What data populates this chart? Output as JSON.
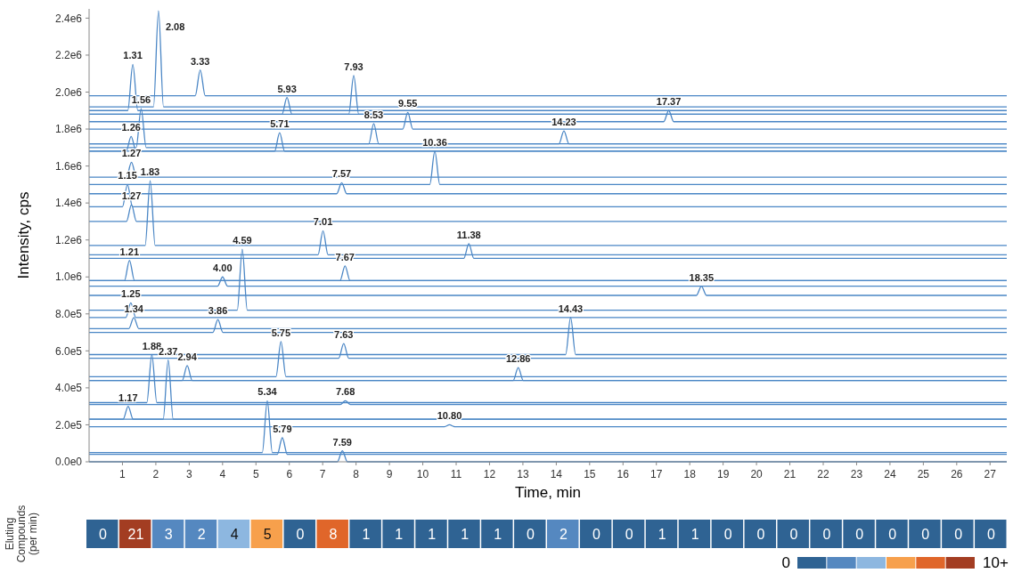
{
  "chart_data": [
    {
      "type": "line",
      "xlabel": "Time, min",
      "ylabel": "Intensity, cps",
      "xlim": [
        0,
        27.5
      ],
      "ylim": [
        0,
        2450000
      ],
      "xticks": [
        1,
        2,
        3,
        4,
        5,
        6,
        7,
        8,
        9,
        10,
        11,
        12,
        13,
        14,
        15,
        16,
        17,
        18,
        19,
        20,
        21,
        22,
        23,
        24,
        25,
        26,
        27
      ],
      "yticks": [
        {
          "value": 0,
          "label": "0.0e0"
        },
        {
          "value": 200000,
          "label": "2.0e5"
        },
        {
          "value": 400000,
          "label": "4.0e5"
        },
        {
          "value": 600000,
          "label": "6.0e5"
        },
        {
          "value": 800000,
          "label": "8.0e5"
        },
        {
          "value": 1000000,
          "label": "1.0e6"
        },
        {
          "value": 1200000,
          "label": "1.2e6"
        },
        {
          "value": 1400000,
          "label": "1.4e6"
        },
        {
          "value": 1600000,
          "label": "1.6e6"
        },
        {
          "value": 1800000,
          "label": "1.8e6"
        },
        {
          "value": 2000000,
          "label": "2.0e6"
        },
        {
          "value": 2200000,
          "label": "2.2e6"
        },
        {
          "value": 2400000,
          "label": "2.4e6"
        }
      ],
      "series": [
        {
          "color": "#4a86c5",
          "x": [
            0,
            1.93,
            2.08,
            2.23,
            27.5
          ],
          "values": [
            1920000,
            1920000,
            2440000,
            1920000,
            1920000
          ]
        },
        {
          "color": "#4a86c5",
          "x": [
            0,
            1.16,
            1.31,
            1.46,
            27.5
          ],
          "values": [
            1900000,
            1900000,
            2150000,
            1900000,
            1900000
          ]
        },
        {
          "color": "#4a86c5",
          "x": [
            0,
            3.18,
            3.33,
            3.48,
            27.5
          ],
          "values": [
            1980000,
            1980000,
            2120000,
            1980000,
            1980000
          ]
        },
        {
          "color": "#4a86c5",
          "x": [
            0,
            7.78,
            7.93,
            8.08,
            27.5
          ],
          "values": [
            1880000,
            1880000,
            2090000,
            1880000,
            1880000
          ]
        },
        {
          "color": "#4a86c5",
          "x": [
            0,
            5.78,
            5.93,
            6.08,
            27.5
          ],
          "values": [
            1880000,
            1880000,
            1970000,
            1880000,
            1880000
          ]
        },
        {
          "color": "#4a86c5",
          "x": [
            0,
            1.41,
            1.56,
            1.71,
            27.5
          ],
          "values": [
            1700000,
            1700000,
            1910000,
            1700000,
            1700000
          ]
        },
        {
          "color": "#4a86c5",
          "x": [
            0,
            9.4,
            9.55,
            9.7,
            27.5
          ],
          "values": [
            1800000,
            1800000,
            1890000,
            1800000,
            1800000
          ]
        },
        {
          "color": "#4a86c5",
          "x": [
            0,
            17.22,
            17.37,
            17.52,
            27.5
          ],
          "values": [
            1840000,
            1840000,
            1900000,
            1840000,
            1840000
          ]
        },
        {
          "color": "#4a86c5",
          "x": [
            0,
            8.38,
            8.53,
            8.68,
            27.5
          ],
          "values": [
            1720000,
            1720000,
            1830000,
            1720000,
            1720000
          ]
        },
        {
          "color": "#4a86c5",
          "x": [
            0,
            14.08,
            14.23,
            14.38,
            27.5
          ],
          "values": [
            1720000,
            1720000,
            1790000,
            1720000,
            1720000
          ]
        },
        {
          "color": "#4a86c5",
          "x": [
            0,
            5.56,
            5.71,
            5.86,
            27.5
          ],
          "values": [
            1680000,
            1680000,
            1780000,
            1680000,
            1680000
          ]
        },
        {
          "color": "#4a86c5",
          "x": [
            0,
            1.11,
            1.26,
            1.41,
            27.5
          ],
          "values": [
            1680000,
            1680000,
            1760000,
            1680000,
            1680000
          ]
        },
        {
          "color": "#4a86c5",
          "x": [
            0,
            10.21,
            10.36,
            10.51,
            27.5
          ],
          "values": [
            1500000,
            1500000,
            1680000,
            1500000,
            1500000
          ]
        },
        {
          "color": "#4a86c5",
          "x": [
            0,
            1.12,
            1.27,
            1.42,
            27.5
          ],
          "values": [
            1540000,
            1540000,
            1620000,
            1540000,
            1540000
          ]
        },
        {
          "color": "#4a86c5",
          "x": [
            0,
            1.68,
            1.83,
            1.98,
            27.5
          ],
          "values": [
            1170000,
            1170000,
            1520000,
            1170000,
            1170000
          ]
        },
        {
          "color": "#4a86c5",
          "x": [
            0,
            7.42,
            7.57,
            7.72,
            27.5
          ],
          "values": [
            1450000,
            1450000,
            1510000,
            1450000,
            1450000
          ]
        },
        {
          "color": "#4a86c5",
          "x": [
            0,
            1,
            1.15,
            1.3,
            27.5
          ],
          "values": [
            1380000,
            1380000,
            1500000,
            1380000,
            1380000
          ]
        },
        {
          "color": "#4a86c5",
          "x": [
            0,
            1.12,
            1.27,
            1.42,
            27.5
          ],
          "values": [
            1300000,
            1300000,
            1390000,
            1300000,
            1300000
          ]
        },
        {
          "color": "#4a86c5",
          "x": [
            0,
            6.86,
            7.01,
            7.16,
            27.5
          ],
          "values": [
            1120000,
            1120000,
            1250000,
            1120000,
            1120000
          ]
        },
        {
          "color": "#4a86c5",
          "x": [
            0,
            4.44,
            4.59,
            4.74,
            27.5
          ],
          "values": [
            820000,
            820000,
            1150000,
            820000,
            820000
          ]
        },
        {
          "color": "#4a86c5",
          "x": [
            0,
            11.23,
            11.38,
            11.53,
            27.5
          ],
          "values": [
            1100000,
            1100000,
            1180000,
            1100000,
            1100000
          ]
        },
        {
          "color": "#4a86c5",
          "x": [
            0,
            1.06,
            1.21,
            1.36,
            27.5
          ],
          "values": [
            980000,
            980000,
            1090000,
            980000,
            980000
          ]
        },
        {
          "color": "#4a86c5",
          "x": [
            0,
            3.85,
            4,
            4.15,
            27.5
          ],
          "values": [
            950000,
            950000,
            1000000,
            950000,
            950000
          ]
        },
        {
          "color": "#4a86c5",
          "x": [
            0,
            7.52,
            7.67,
            7.82,
            27.5
          ],
          "values": [
            980000,
            980000,
            1060000,
            980000,
            980000
          ]
        },
        {
          "color": "#4a86c5",
          "x": [
            0,
            18.2,
            18.35,
            18.5,
            27.5
          ],
          "values": [
            900000,
            900000,
            950000,
            900000,
            900000
          ]
        },
        {
          "color": "#4a86c5",
          "x": [
            0,
            1.1,
            1.25,
            1.4,
            27.5
          ],
          "values": [
            780000,
            780000,
            860000,
            780000,
            780000
          ]
        },
        {
          "color": "#4a86c5",
          "x": [
            0,
            1.19,
            1.34,
            1.49,
            27.5
          ],
          "values": [
            720000,
            720000,
            780000,
            720000,
            720000
          ]
        },
        {
          "color": "#4a86c5",
          "x": [
            0,
            14.28,
            14.43,
            14.58,
            27.5
          ],
          "values": [
            580000,
            580000,
            780000,
            580000,
            580000
          ]
        },
        {
          "color": "#4a86c5",
          "x": [
            0,
            3.71,
            3.86,
            4.01,
            27.5
          ],
          "values": [
            700000,
            700000,
            770000,
            700000,
            700000
          ]
        },
        {
          "color": "#4a86c5",
          "x": [
            0,
            5.6,
            5.75,
            5.9,
            27.5
          ],
          "values": [
            460000,
            460000,
            650000,
            460000,
            460000
          ]
        },
        {
          "color": "#4a86c5",
          "x": [
            0,
            7.48,
            7.63,
            7.78,
            27.5
          ],
          "values": [
            560000,
            560000,
            640000,
            560000,
            560000
          ]
        },
        {
          "color": "#4a86c5",
          "x": [
            0,
            1.73,
            1.88,
            2.03,
            27.5
          ],
          "values": [
            320000,
            320000,
            580000,
            320000,
            320000
          ]
        },
        {
          "color": "#4a86c5",
          "x": [
            0,
            2.22,
            2.37,
            2.52,
            27.5
          ],
          "values": [
            230000,
            230000,
            550000,
            230000,
            230000
          ]
        },
        {
          "color": "#4a86c5",
          "x": [
            0,
            2.79,
            2.94,
            3.09,
            27.5
          ],
          "values": [
            440000,
            440000,
            520000,
            440000,
            440000
          ]
        },
        {
          "color": "#4a86c5",
          "x": [
            0,
            12.71,
            12.86,
            13.01,
            27.5
          ],
          "values": [
            440000,
            440000,
            510000,
            440000,
            440000
          ]
        },
        {
          "color": "#4a86c5",
          "x": [
            0,
            1.02,
            1.17,
            1.32,
            27.5
          ],
          "values": [
            230000,
            230000,
            300000,
            230000,
            230000
          ]
        },
        {
          "color": "#4a86c5",
          "x": [
            0,
            7.53,
            7.68,
            7.83,
            27.5
          ],
          "values": [
            310000,
            310000,
            330000,
            310000,
            310000
          ]
        },
        {
          "color": "#4a86c5",
          "x": [
            0,
            5.19,
            5.34,
            5.49,
            27.5
          ],
          "values": [
            50000,
            50000,
            330000,
            50000,
            50000
          ]
        },
        {
          "color": "#4a86c5",
          "x": [
            0,
            10.65,
            10.8,
            10.95,
            27.5
          ],
          "values": [
            190000,
            190000,
            200000,
            190000,
            190000
          ]
        },
        {
          "color": "#4a86c5",
          "x": [
            0,
            5.64,
            5.79,
            5.94,
            27.5
          ],
          "values": [
            40000,
            40000,
            130000,
            40000,
            40000
          ]
        },
        {
          "color": "#4a86c5",
          "x": [
            0,
            7.44,
            7.59,
            7.74,
            27.5
          ],
          "values": [
            0,
            0,
            60000,
            0,
            0
          ]
        }
      ],
      "annotations": [
        {
          "text": "2.08",
          "x": 2.08,
          "y": 2440000
        },
        {
          "text": "1.31",
          "x": 1.31,
          "y": 2150000
        },
        {
          "text": "3.33",
          "x": 3.33,
          "y": 2120000
        },
        {
          "text": "7.93",
          "x": 7.93,
          "y": 2090000
        },
        {
          "text": "5.93",
          "x": 5.93,
          "y": 1970000
        },
        {
          "text": "1.56",
          "x": 1.56,
          "y": 1910000
        },
        {
          "text": "9.55",
          "x": 9.55,
          "y": 1890000
        },
        {
          "text": "17.37",
          "x": 17.37,
          "y": 1900000
        },
        {
          "text": "8.53",
          "x": 8.53,
          "y": 1830000
        },
        {
          "text": "14.23",
          "x": 14.23,
          "y": 1790000
        },
        {
          "text": "5.71",
          "x": 5.71,
          "y": 1780000
        },
        {
          "text": "1.26",
          "x": 1.26,
          "y": 1760000
        },
        {
          "text": "10.36",
          "x": 10.36,
          "y": 1680000
        },
        {
          "text": "1.27",
          "x": 1.27,
          "y": 1620000
        },
        {
          "text": "1.83",
          "x": 1.83,
          "y": 1520000
        },
        {
          "text": "7.57",
          "x": 7.57,
          "y": 1510000
        },
        {
          "text": "1.15",
          "x": 1.15,
          "y": 1500000
        },
        {
          "text": "1.27",
          "x": 1.27,
          "y": 1390000
        },
        {
          "text": "7.01",
          "x": 7.01,
          "y": 1250000
        },
        {
          "text": "4.59",
          "x": 4.59,
          "y": 1150000
        },
        {
          "text": "11.38",
          "x": 11.38,
          "y": 1180000
        },
        {
          "text": "1.21",
          "x": 1.21,
          "y": 1090000
        },
        {
          "text": "4.00",
          "x": 4,
          "y": 1000000
        },
        {
          "text": "7.67",
          "x": 7.67,
          "y": 1060000
        },
        {
          "text": "18.35",
          "x": 18.35,
          "y": 950000
        },
        {
          "text": "1.25",
          "x": 1.25,
          "y": 860000
        },
        {
          "text": "1.34",
          "x": 1.34,
          "y": 780000
        },
        {
          "text": "14.43",
          "x": 14.43,
          "y": 780000
        },
        {
          "text": "3.86",
          "x": 3.86,
          "y": 770000
        },
        {
          "text": "5.75",
          "x": 5.75,
          "y": 650000
        },
        {
          "text": "7.63",
          "x": 7.63,
          "y": 640000
        },
        {
          "text": "1.88",
          "x": 1.88,
          "y": 580000
        },
        {
          "text": "2.37",
          "x": 2.37,
          "y": 550000
        },
        {
          "text": "2.94",
          "x": 2.94,
          "y": 520000
        },
        {
          "text": "12.86",
          "x": 12.86,
          "y": 510000
        },
        {
          "text": "1.17",
          "x": 1.17,
          "y": 300000
        },
        {
          "text": "7.68",
          "x": 7.68,
          "y": 330000
        },
        {
          "text": "5.34",
          "x": 5.34,
          "y": 330000
        },
        {
          "text": "10.80",
          "x": 10.8,
          "y": 200000
        },
        {
          "text": "5.79",
          "x": 5.79,
          "y": 130000
        },
        {
          "text": "7.59",
          "x": 7.59,
          "y": 60000
        }
      ]
    },
    {
      "type": "heatmap",
      "y_categories": [
        "Eluting\nCompounds\n(per min)"
      ],
      "categories": [
        null,
        null,
        null,
        null,
        null,
        null,
        null,
        null,
        null,
        null,
        null,
        null,
        null,
        null,
        null,
        null,
        null,
        null,
        null,
        null,
        null,
        null,
        null,
        null,
        null,
        null,
        null,
        null
      ],
      "cells": [
        [
          0,
          21,
          3,
          2,
          4,
          5,
          0,
          8,
          1,
          1,
          1,
          1,
          1,
          0,
          2,
          0,
          0,
          1,
          1,
          0,
          0,
          0,
          0,
          0,
          0,
          0,
          0,
          0
        ]
      ],
      "data_labels": true,
      "annotations": [
        "0",
        "10+"
      ],
      "colors": [
        "#2f6393",
        "#a33d22",
        "#5588c0",
        "#5588c0",
        "#8db7e0",
        "#f7a04c",
        "#2f6393",
        "#e0662a",
        "#2f6393",
        "#2f6393",
        "#2f6393",
        "#2f6393",
        "#2f6393",
        "#2f6393",
        "#5588c0",
        "#2f6393",
        "#2f6393",
        "#2f6393",
        "#2f6393",
        "#2f6393",
        "#2f6393",
        "#2f6393",
        "#2f6393",
        "#2f6393",
        "#2f6393",
        "#2f6393",
        "#2f6393",
        "#2f6393"
      ]
    }
  ]
}
